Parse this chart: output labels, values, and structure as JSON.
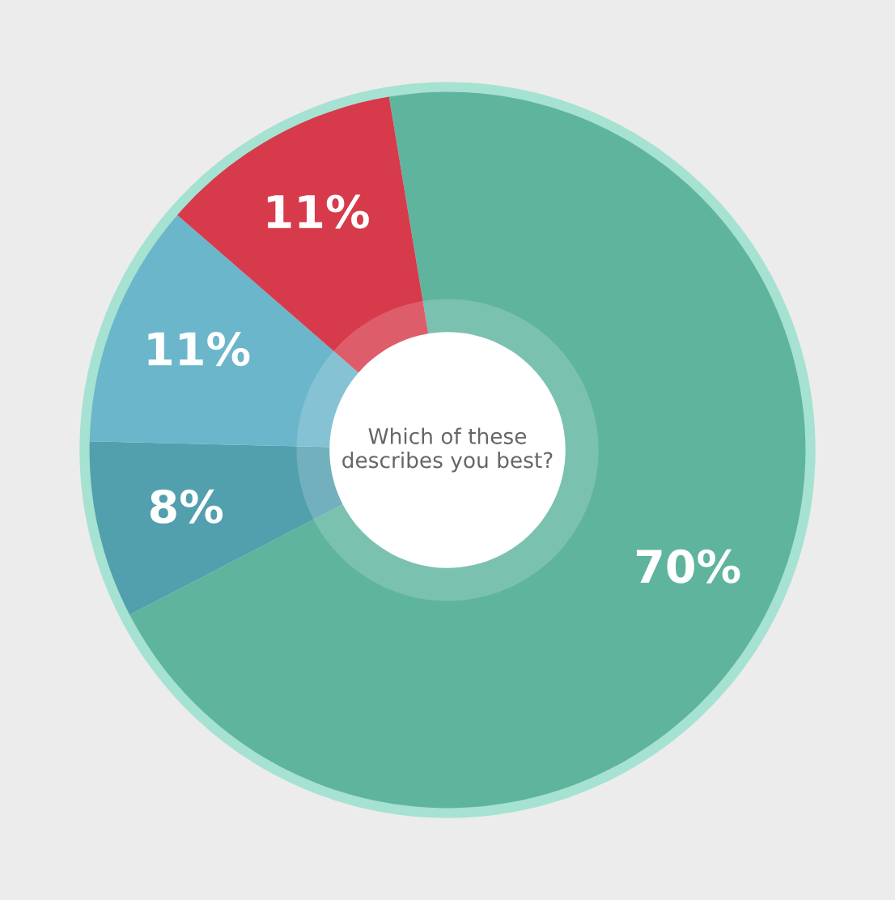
{
  "chart_data": {
    "type": "donut",
    "title": "Which of these describes you best?",
    "categories": [
      null,
      null,
      null,
      null
    ],
    "values": [
      70,
      8,
      11,
      11
    ],
    "colors": [
      "#5fb49e",
      "#529fae",
      "#6bb6cb",
      "#d63a4b"
    ],
    "value_labels": [
      "70%",
      "8%",
      "11%",
      "11%"
    ]
  }
}
